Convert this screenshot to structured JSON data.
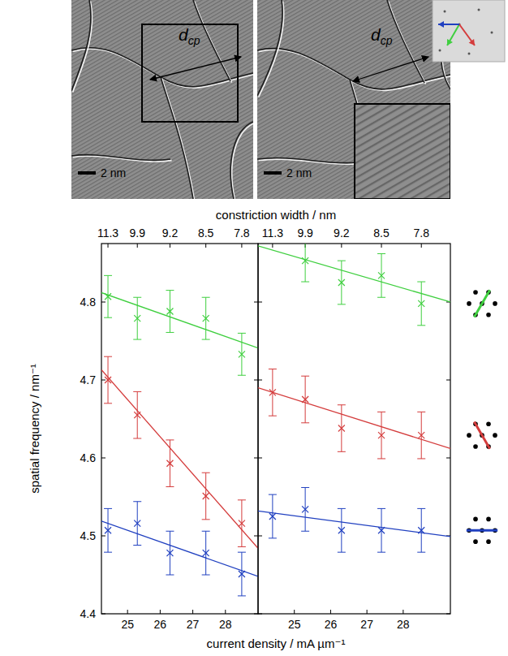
{
  "images": [
    {
      "scale_label": "2 nm",
      "annotation": {
        "text": "d",
        "subscript": "cp"
      }
    },
    {
      "scale_label": "2 nm",
      "annotation": {
        "text": "d",
        "subscript": "cp"
      }
    }
  ],
  "chart_data": [
    {
      "type": "scatter",
      "xlabel": "current density / mA µm⁻¹",
      "ylabel": "spatial frequency / nm⁻¹",
      "x2label": "constriction width / nm",
      "x": [
        24.4,
        25.3,
        26.3,
        27.4,
        28.5
      ],
      "xlim": [
        24.2,
        29.0
      ],
      "xticks": [
        25,
        26,
        27,
        28
      ],
      "x2lim": [
        24.2,
        29.0
      ],
      "x2ticks": [
        {
          "value": 24.4,
          "label": "11.3"
        },
        {
          "value": 25.3,
          "label": "9.9"
        },
        {
          "value": 26.3,
          "label": "9.2"
        },
        {
          "value": 27.4,
          "label": "8.5"
        },
        {
          "value": 28.5,
          "label": "7.8"
        }
      ],
      "ylim": [
        4.4,
        4.875
      ],
      "yticks": [
        4.4,
        4.5,
        4.6,
        4.7,
        4.8
      ],
      "grid": false,
      "marker": "x",
      "series": [
        {
          "color": "#3fcf3f",
          "values": [
            4.807,
            4.779,
            4.788,
            4.779,
            4.733
          ],
          "errors": [
            0.027,
            0.027,
            0.027,
            0.027,
            0.027
          ]
        },
        {
          "color": "#d43c3c",
          "values": [
            4.7,
            4.655,
            4.593,
            4.551,
            4.516
          ],
          "errors": [
            0.03,
            0.03,
            0.03,
            0.03,
            0.03
          ]
        },
        {
          "color": "#2040c0",
          "values": [
            4.507,
            4.516,
            4.478,
            4.478,
            4.451
          ],
          "errors": [
            0.028,
            0.028,
            0.028,
            0.028,
            0.028
          ]
        },
        {
          "type": "line",
          "color": "#3fcf3f",
          "x": [
            24.2,
            29.0
          ],
          "values": [
            4.812,
            4.741
          ]
        },
        {
          "type": "line",
          "color": "#d43c3c",
          "x": [
            24.2,
            29.0
          ],
          "values": [
            4.713,
            4.484
          ]
        },
        {
          "type": "line",
          "color": "#2040c0",
          "x": [
            24.2,
            29.0
          ],
          "values": [
            4.519,
            4.448
          ]
        }
      ]
    },
    {
      "type": "scatter",
      "x": [
        24.4,
        25.3,
        26.3,
        27.4,
        28.5
      ],
      "xlim": [
        24.0,
        29.3
      ],
      "xticks": [
        25,
        26,
        27,
        28
      ],
      "x2lim": [
        24.0,
        29.3
      ],
      "x2ticks": [
        {
          "value": 24.4,
          "label": "11.3"
        },
        {
          "value": 25.3,
          "label": "9.9"
        },
        {
          "value": 26.3,
          "label": "9.2"
        },
        {
          "value": 27.4,
          "label": "8.5"
        },
        {
          "value": 28.5,
          "label": "7.8"
        }
      ],
      "ylim": [
        4.4,
        4.875
      ],
      "yticks": [
        4.4,
        4.5,
        4.6,
        4.7,
        4.8
      ],
      "grid": false,
      "tick_labels": "x",
      "legend": "right",
      "marker": "x",
      "series": [
        {
          "color": "#3fcf3f",
          "values": [
            null,
            4.853,
            4.825,
            4.834,
            4.798
          ],
          "errors": [
            null,
            0.027,
            0.028,
            0.028,
            0.028
          ]
        },
        {
          "color": "#d43c3c",
          "values": [
            4.684,
            4.675,
            4.638,
            4.629,
            4.629
          ],
          "errors": [
            0.03,
            0.03,
            0.03,
            0.03,
            0.03
          ]
        },
        {
          "color": "#2040c0",
          "values": [
            4.525,
            4.534,
            4.507,
            4.507,
            4.507
          ],
          "errors": [
            0.028,
            0.028,
            0.028,
            0.028,
            0.028
          ]
        },
        {
          "type": "line",
          "color": "#3fcf3f",
          "x": [
            24.0,
            29.3
          ],
          "values": [
            4.872,
            4.8
          ]
        },
        {
          "type": "line",
          "color": "#d43c3c",
          "x": [
            24.0,
            29.3
          ],
          "values": [
            4.69,
            4.612
          ]
        },
        {
          "type": "line",
          "color": "#2040c0",
          "x": [
            24.0,
            29.3
          ],
          "values": [
            4.532,
            4.499
          ]
        }
      ]
    }
  ]
}
